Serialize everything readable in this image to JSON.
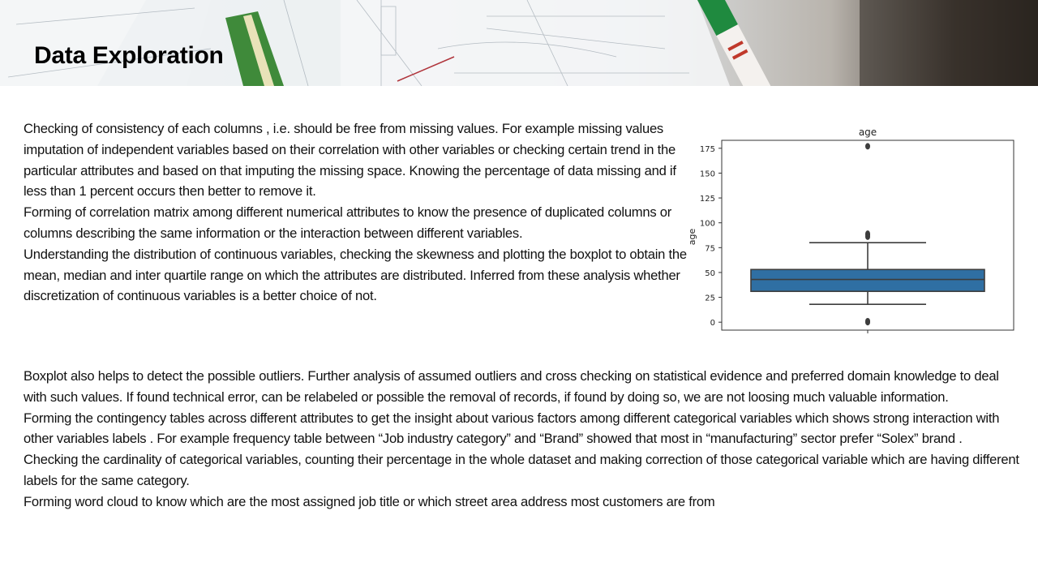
{
  "slide": {
    "title": "Data Exploration"
  },
  "top_paragraphs": [
    "Checking of consistency of each columns , i.e. should be free from missing values. For example missing values imputation of independent variables based on their correlation with other variables or checking certain trend in the particular attributes and based on that imputing the missing space. Knowing the percentage of data missing and if less than 1 percent occurs then better to remove it.",
    "Forming of correlation matrix among different numerical attributes to know the presence of duplicated columns or columns describing the same information or the interaction between different variables.",
    "Understanding the distribution of continuous variables, checking the skewness and plotting the boxplot  to obtain the mean, median and inter quartile range on which the attributes are distributed. Inferred from these analysis whether discretization of continuous variables is a better choice of not."
  ],
  "bottom_paragraphs": [
    "Boxplot also helps to detect the possible outliers. Further analysis of assumed outliers and cross checking on statistical evidence and preferred domain knowledge to deal with such values. If found technical error, can be relabeled or possible the removal of records, if found by doing so, we are not loosing much valuable information.",
    "Forming the contingency tables across different attributes to get the insight about various factors among different categorical variables which shows strong interaction with other variables labels .  For example frequency table between “Job industry category” and “Brand” showed that most in “manufacturing” sector prefer “Solex” brand .",
    "Checking the cardinality of categorical variables, counting their percentage in the whole dataset and making correction of those categorical variable which are having different labels for the same category.",
    "Forming word cloud to know which are the most assigned job title or which street area address most customers are from"
  ],
  "chart_data": {
    "type": "boxplot",
    "title": "age",
    "xlabel": "",
    "ylabel": "age",
    "ylim": [
      -8,
      183
    ],
    "yticks": [
      0,
      25,
      50,
      75,
      100,
      125,
      150,
      175
    ],
    "box": {
      "whisker_low": 18,
      "q1": 31,
      "median": 43,
      "q3": 53,
      "whisker_high": 80,
      "outliers": [
        0,
        1,
        86,
        88,
        89,
        177
      ]
    },
    "box_color": "#2f6fa3",
    "grid": false,
    "legend": "none"
  }
}
